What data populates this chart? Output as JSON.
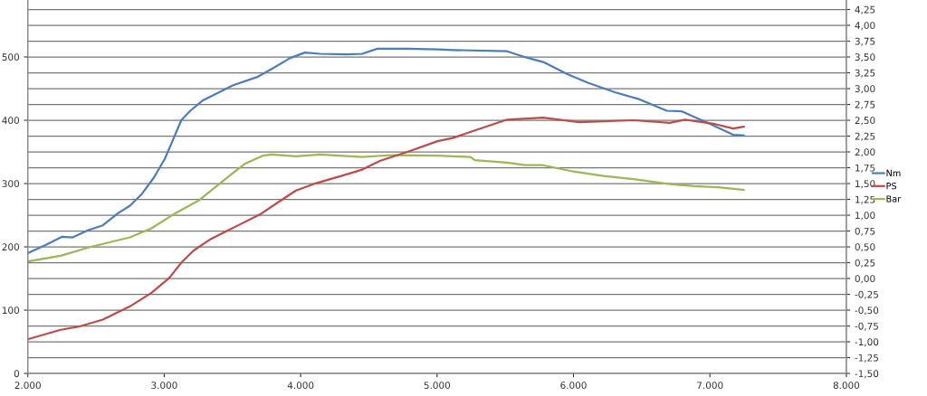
{
  "chart_data": {
    "type": "line",
    "xlim": [
      2000,
      8000
    ],
    "xticks": [
      {
        "value": 2000,
        "label": "2.000"
      },
      {
        "value": 3000,
        "label": "3.000"
      },
      {
        "value": 4000,
        "label": "4.000"
      },
      {
        "value": 5000,
        "label": "5.000"
      },
      {
        "value": 6000,
        "label": "6.000"
      },
      {
        "value": 7000,
        "label": "7.000"
      },
      {
        "value": 8000,
        "label": "8.000"
      }
    ],
    "ylim": [
      0,
      590
    ],
    "yticks": [
      0,
      100,
      200,
      300,
      400,
      500
    ],
    "y2lim": [
      -1.5,
      4.4
    ],
    "y2ticks": [
      {
        "value": -1.5,
        "label": "-1,50"
      },
      {
        "value": -1.25,
        "label": "-1,25"
      },
      {
        "value": -1.0,
        "label": "-1,00"
      },
      {
        "value": -0.75,
        "label": "-0,75"
      },
      {
        "value": -0.5,
        "label": "-0,50"
      },
      {
        "value": -0.25,
        "label": "-0,25"
      },
      {
        "value": 0,
        "label": "0,00"
      },
      {
        "value": 0.25,
        "label": "0,25"
      },
      {
        "value": 0.5,
        "label": "0,50"
      },
      {
        "value": 0.75,
        "label": "0,75"
      },
      {
        "value": 1.0,
        "label": "1,00"
      },
      {
        "value": 1.25,
        "label": "1,25"
      },
      {
        "value": 1.5,
        "label": "1,50"
      },
      {
        "value": 1.75,
        "label": "1,75"
      },
      {
        "value": 2.0,
        "label": "2,00"
      },
      {
        "value": 2.25,
        "label": "2,25"
      },
      {
        "value": 2.5,
        "label": "2,50"
      },
      {
        "value": 2.75,
        "label": "2,75"
      },
      {
        "value": 3.0,
        "label": "3,00"
      },
      {
        "value": 3.25,
        "label": "3,25"
      },
      {
        "value": 3.5,
        "label": "3,50"
      },
      {
        "value": 3.75,
        "label": "3,75"
      },
      {
        "value": 4.0,
        "label": "4,00"
      },
      {
        "value": 4.25,
        "label": "4,25"
      }
    ],
    "grid": "y2",
    "legend": "right",
    "marker": "none",
    "line_style": "solid",
    "series": [
      {
        "name": "Nm",
        "color": "#4a7ebb",
        "x": [
          2000,
          2130,
          2252,
          2329,
          2440,
          2550,
          2661,
          2749,
          2838,
          2926,
          3004,
          3070,
          3125,
          3191,
          3280,
          3390,
          3501,
          3678,
          3788,
          3921,
          4031,
          4142,
          4341,
          4451,
          4562,
          4783,
          5004,
          5114,
          5513,
          5625,
          5778,
          5955,
          6109,
          6308,
          6485,
          6684,
          6794,
          6993,
          7170,
          7248
        ],
        "values": [
          190,
          203,
          216,
          215,
          226,
          234,
          253,
          265,
          284,
          310,
          339,
          372,
          400,
          415,
          431,
          443,
          455,
          468,
          481,
          498,
          507,
          505,
          504,
          505,
          513,
          513,
          512,
          511,
          509,
          501,
          492,
          473,
          459,
          444,
          433,
          415,
          414,
          395,
          377,
          376
        ]
      },
      {
        "name": "PS",
        "color": "#be4b48",
        "x": [
          2000,
          2241,
          2374,
          2550,
          2749,
          2904,
          3037,
          3125,
          3214,
          3346,
          3523,
          3700,
          3832,
          3965,
          4120,
          4297,
          4451,
          4584,
          4783,
          5004,
          5114,
          5513,
          5778,
          6042,
          6440,
          6706,
          6816,
          7037,
          7170,
          7248
        ],
        "values": [
          54,
          69,
          74,
          85,
          106,
          127,
          151,
          175,
          194,
          213,
          232,
          251,
          270,
          289,
          301,
          312,
          322,
          336,
          350,
          367,
          372,
          401,
          404,
          397,
          400,
          396,
          401,
          394,
          387,
          390
        ]
      },
      {
        "name": "Bar",
        "color": "#98b954",
        "axis": "y2",
        "x": [
          2000,
          2241,
          2462,
          2749,
          2904,
          3081,
          3258,
          3435,
          3589,
          3722,
          3788,
          3965,
          4142,
          4451,
          4673,
          5004,
          5114,
          5244,
          5277,
          5513,
          5645,
          5778,
          5999,
          6220,
          6440,
          6706,
          6883,
          7060,
          7248
        ],
        "values": [
          0.27,
          0.36,
          0.5,
          0.65,
          0.79,
          1.03,
          1.24,
          1.55,
          1.81,
          1.94,
          1.96,
          1.93,
          1.96,
          1.92,
          1.95,
          1.94,
          1.93,
          1.92,
          1.87,
          1.83,
          1.79,
          1.79,
          1.69,
          1.62,
          1.57,
          1.49,
          1.46,
          1.44,
          1.4
        ]
      }
    ]
  }
}
